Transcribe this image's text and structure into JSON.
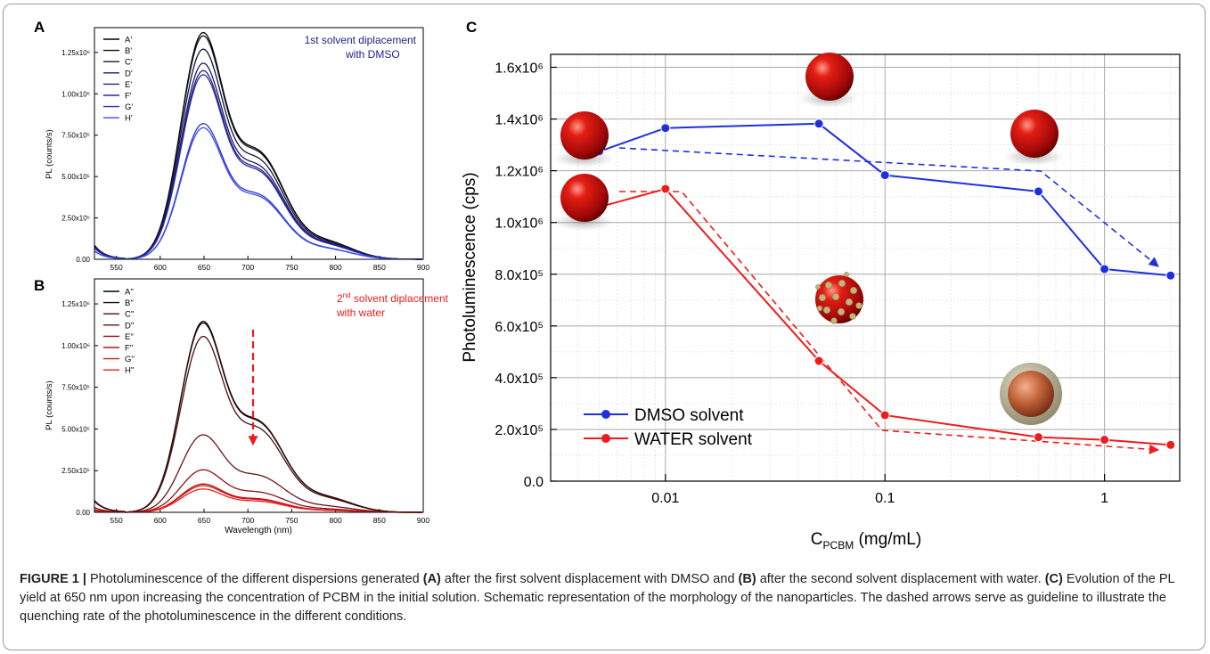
{
  "colors": {
    "dmso": "#1f2fe0",
    "water": "#ee1c1c",
    "grid": "#d6d6d6",
    "axis": "#000000"
  },
  "panels": {
    "a": {
      "label": "A",
      "annotation_line1": "1st solvent diplacement",
      "annotation_line2": "with DMSO",
      "ylabel": "PL (counts/s)",
      "xticks": [
        "550",
        "600",
        "650",
        "700",
        "750",
        "800",
        "850",
        "900"
      ],
      "yticks": [
        "0.00",
        "2.50x10⁵",
        "5.00x10⁵",
        "7.50x10⁵",
        "1.00x10⁶",
        "1.25x10⁶"
      ]
    },
    "b": {
      "label": "B",
      "annotation_sup": "nd",
      "annotation_pre": "2",
      "annotation_line1_rest": " solvent diplacement",
      "annotation_line2": "with water",
      "ylabel": "PL (counts/s)",
      "xlabel": "Wavelength (nm)",
      "xticks": [
        "550",
        "600",
        "650",
        "700",
        "750",
        "800",
        "850",
        "900"
      ],
      "yticks": [
        "0.00",
        "2.50x10⁵",
        "5.00x10⁵",
        "7.50x10⁵",
        "1.00x10⁶",
        "1.25x10⁶"
      ]
    },
    "c": {
      "label": "C",
      "ylabel": "Photoluminescence (cps)",
      "xlabel_main": "C",
      "xlabel_sub": "PCBM",
      "xlabel_unit": " (mg/mL)",
      "xticks": [
        "0.01",
        "0.1",
        "1"
      ],
      "yticks": [
        "0.0",
        "2.0x10⁵",
        "4.0x10⁵",
        "6.0x10⁵",
        "8.0x10⁵",
        "1.0x10⁶",
        "1.2x10⁶",
        "1.4x10⁶",
        "1.6x10⁶"
      ],
      "legend": [
        "DMSO solvent",
        "WATER solvent"
      ]
    }
  },
  "chart_data": [
    {
      "type": "line",
      "panel": "A",
      "xlabel": "",
      "ylabel": "PL (counts/s)",
      "xlim": [
        525,
        900
      ],
      "ylim": [
        0,
        1400000
      ],
      "series": [
        {
          "name": "A'",
          "peak": 1370000,
          "color": "#000000"
        },
        {
          "name": "B'",
          "peak": 1350000,
          "color": "#101018"
        },
        {
          "name": "C'",
          "peak": 1270000,
          "color": "#141440"
        },
        {
          "name": "D'",
          "peak": 1185000,
          "color": "#1c1c66"
        },
        {
          "name": "E'",
          "peak": 1140000,
          "color": "#222288"
        },
        {
          "name": "F'",
          "peak": 1115000,
          "color": "#2828a8"
        },
        {
          "name": "G'",
          "peak": 820000,
          "color": "#3030c8"
        },
        {
          "name": "H'",
          "peak": 795000,
          "color": "#3a4fe8"
        }
      ]
    },
    {
      "type": "line",
      "panel": "B",
      "xlabel": "Wavelength (nm)",
      "ylabel": "PL (counts/s)",
      "xlim": [
        525,
        900
      ],
      "ylim": [
        0,
        1400000
      ],
      "series": [
        {
          "name": "A''",
          "peak": 1145000,
          "color": "#000000"
        },
        {
          "name": "B''",
          "peak": 1135000,
          "color": "#2a0a0a"
        },
        {
          "name": "C''",
          "peak": 1055000,
          "color": "#4a0e0e"
        },
        {
          "name": "D''",
          "peak": 465000,
          "color": "#6a1212"
        },
        {
          "name": "E''",
          "peak": 255000,
          "color": "#8a1414"
        },
        {
          "name": "F''",
          "peak": 170000,
          "color": "#b01616"
        },
        {
          "name": "G''",
          "peak": 160000,
          "color": "#d41818"
        },
        {
          "name": "H''",
          "peak": 140000,
          "color": "#ee1c1c"
        }
      ]
    },
    {
      "type": "line",
      "panel": "C",
      "x_scale": "log",
      "xlim": [
        0.003,
        2.2
      ],
      "ylim": [
        0,
        1650000
      ],
      "ylabel": "Photoluminescence (cps)",
      "xlabel": "C_PCBM (mg/mL)",
      "x": [
        0.005,
        0.01,
        0.05,
        0.1,
        0.5,
        1,
        2
      ],
      "series": [
        {
          "name": "DMSO solvent",
          "values": [
            1275000,
            1365000,
            1382000,
            1183000,
            1120000,
            820000,
            795000
          ],
          "color": "#1f2fe0"
        },
        {
          "name": "WATER solvent",
          "values": [
            1060000,
            1130000,
            465000,
            255000,
            170000,
            160000,
            140000
          ],
          "color": "#ee1c1c"
        }
      ],
      "legend_position": "bottom-left",
      "grid": true
    }
  ],
  "caption": {
    "lead": "FIGURE 1 |",
    "t1": " Photoluminescence of the different dispersions generated ",
    "b1": "(A)",
    "t2": " after the first solvent displacement with DMSO and ",
    "b2": "(B)",
    "t3": " after the second solvent displacement with water. ",
    "b3": "(C)",
    "t4": " Evolution of the PL yield at 650 nm upon increasing the concentration of PCBM in the initial solution. Schematic representation of the morphology of the nanoparticles. The dashed arrows serve as guideline to illustrate the quenching rate of the photoluminescence in the different conditions."
  }
}
